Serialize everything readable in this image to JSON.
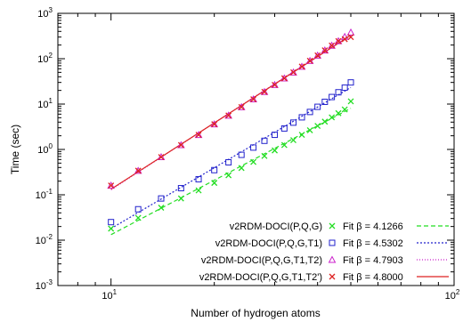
{
  "chart_data": {
    "type": "scatter",
    "xscale": "log",
    "yscale": "log",
    "xlim": [
      7,
      100
    ],
    "ylim": [
      0.001,
      1000
    ],
    "xlabel": "Number of hydrogen atoms",
    "ylabel": "Time (sec)",
    "x_ticks": [
      {
        "value": 10,
        "base": "10",
        "exp": "1"
      },
      {
        "value": 100,
        "base": "10",
        "exp": "2"
      }
    ],
    "y_ticks": [
      {
        "value": 0.001,
        "base": "10",
        "exp": "-3"
      },
      {
        "value": 0.01,
        "base": "10",
        "exp": "-2"
      },
      {
        "value": 0.1,
        "base": "10",
        "exp": "-1"
      },
      {
        "value": 1,
        "base": "10",
        "exp": "0"
      },
      {
        "value": 10,
        "base": "10",
        "exp": "1"
      },
      {
        "value": 100,
        "base": "10",
        "exp": "2"
      },
      {
        "value": 1000,
        "base": "10",
        "exp": "3"
      }
    ],
    "legend_position": "bottom-right",
    "series": [
      {
        "name": "v2RDM-DOCI(P,Q,G)",
        "marker": "x",
        "color": "#22dd22",
        "fit_label": "Fit β = 4.1266",
        "fit_dash": "5,3",
        "x": [
          10,
          12,
          14,
          16,
          18,
          20,
          22,
          24,
          26,
          28,
          30,
          32,
          34,
          36,
          38,
          40,
          42,
          44,
          46,
          48,
          50
        ],
        "y": [
          0.018,
          0.031,
          0.052,
          0.083,
          0.125,
          0.183,
          0.27,
          0.39,
          0.53,
          0.72,
          0.95,
          1.25,
          1.6,
          2.1,
          2.65,
          3.3,
          4.1,
          5.1,
          6.3,
          7.6,
          11.5
        ]
      },
      {
        "name": "v2RDM-DOCI(P,Q,G,T1)",
        "marker": "square",
        "color": "#2222cc",
        "fit_label": "Fit β = 4.5302",
        "fit_dash": "2,2",
        "x": [
          10,
          12,
          14,
          16,
          18,
          20,
          22,
          24,
          26,
          28,
          30,
          32,
          34,
          36,
          38,
          40,
          42,
          44,
          46,
          48,
          50
        ],
        "y": [
          0.025,
          0.048,
          0.083,
          0.14,
          0.22,
          0.35,
          0.52,
          0.76,
          1.1,
          1.55,
          2.1,
          2.9,
          3.9,
          5.1,
          6.7,
          8.7,
          11.2,
          14.3,
          18.2,
          23.0,
          30.0
        ]
      },
      {
        "name": "v2RDM-DOCI(P,Q,G,T1,T2)",
        "marker": "triangle",
        "color": "#cc22cc",
        "fit_label": "Fit β = 4.7903",
        "fit_dash": "1,2",
        "x": [
          10,
          12,
          14,
          16,
          18,
          20,
          22,
          24,
          26,
          28,
          30,
          32,
          34,
          36,
          38,
          40,
          42,
          44,
          46,
          48,
          50
        ],
        "y": [
          0.16,
          0.34,
          0.68,
          1.25,
          2.1,
          3.6,
          5.6,
          8.6,
          12.8,
          18.6,
          26.5,
          37,
          50,
          67,
          90,
          118,
          153,
          195,
          245,
          305,
          380
        ]
      },
      {
        "name": "v2RDM-DOCI(P,Q,G,T1,T2')",
        "marker": "x",
        "color": "#dd2222",
        "fit_label": "Fit β = 4.8000",
        "fit_dash": "",
        "x": [
          10,
          12,
          14,
          16,
          18,
          20,
          22,
          24,
          26,
          28,
          30,
          32,
          34,
          36,
          38,
          40,
          42,
          44,
          46,
          48,
          50
        ],
        "y": [
          0.16,
          0.34,
          0.68,
          1.25,
          2.1,
          3.6,
          5.6,
          8.6,
          12.8,
          18.6,
          26.5,
          37,
          50,
          67,
          90,
          118,
          153,
          195,
          245,
          270,
          300
        ]
      }
    ]
  }
}
